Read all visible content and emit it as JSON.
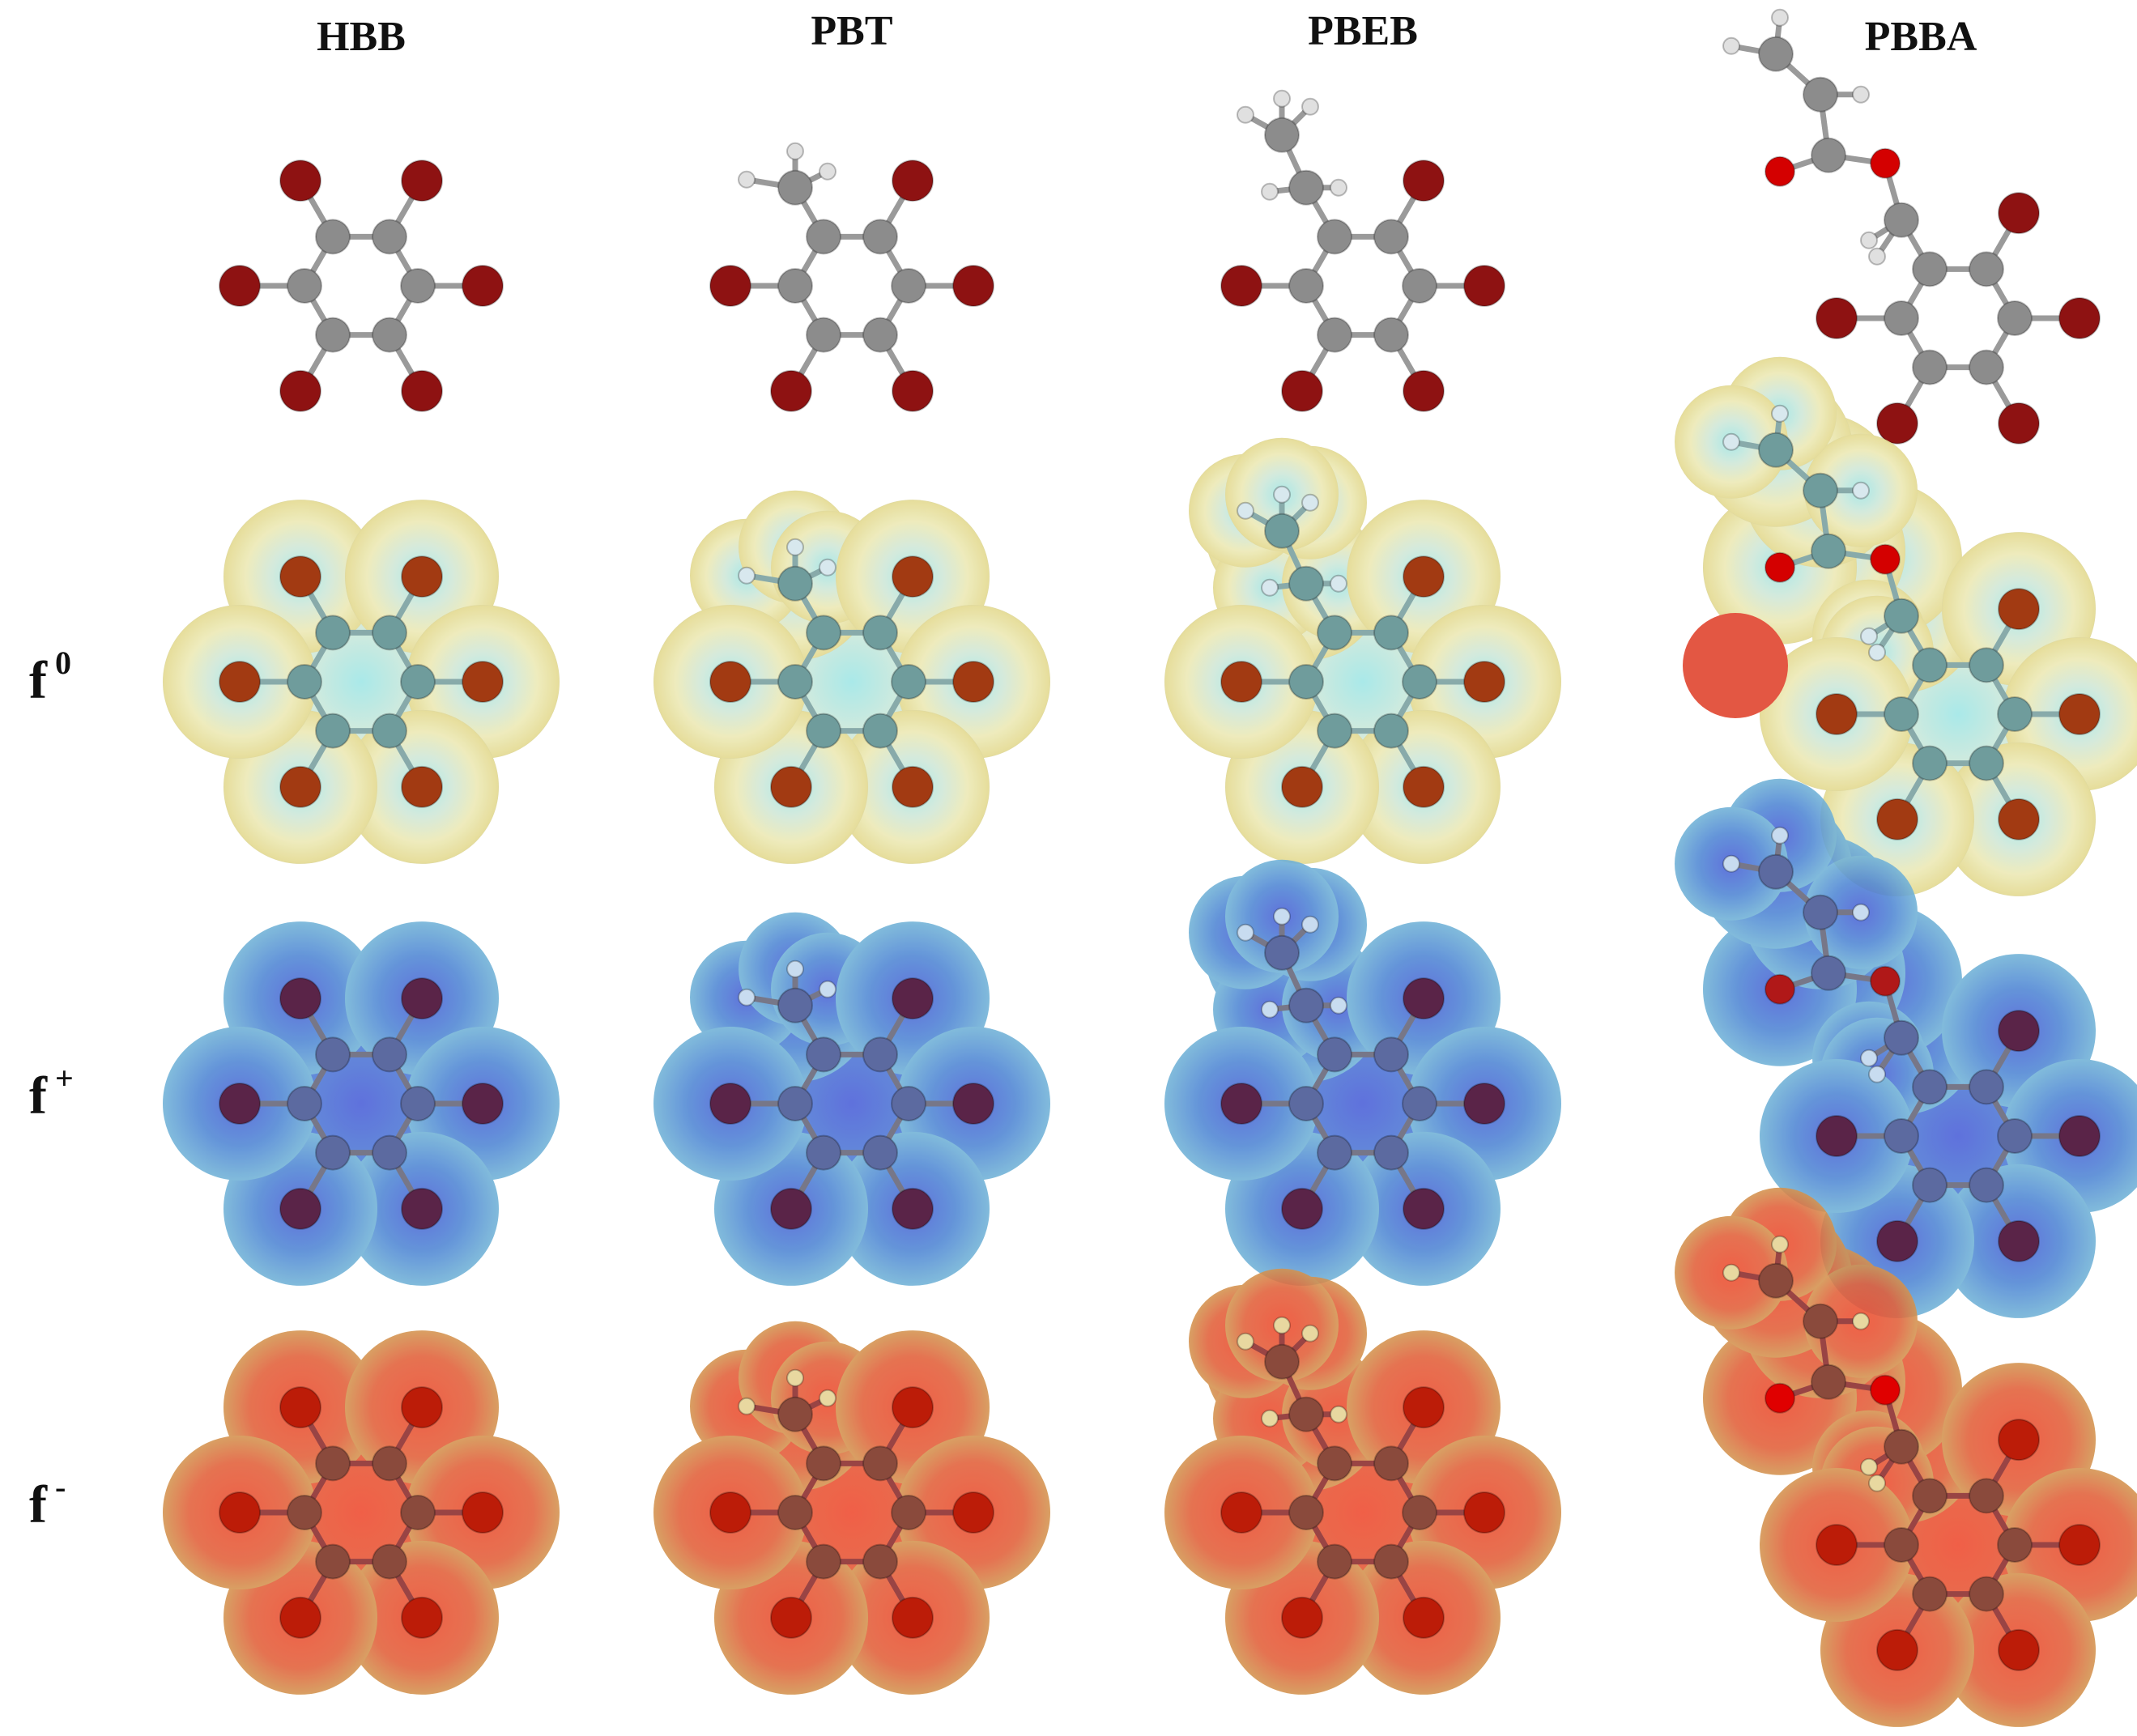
{
  "column_headers": [
    "HBB",
    "PBT",
    "PBEB",
    "PBBA"
  ],
  "row_labels": [
    {
      "base": "f",
      "sup": "0"
    },
    {
      "base": "f",
      "sup": "+"
    },
    {
      "base": "f",
      "sup": "-"
    }
  ]
}
